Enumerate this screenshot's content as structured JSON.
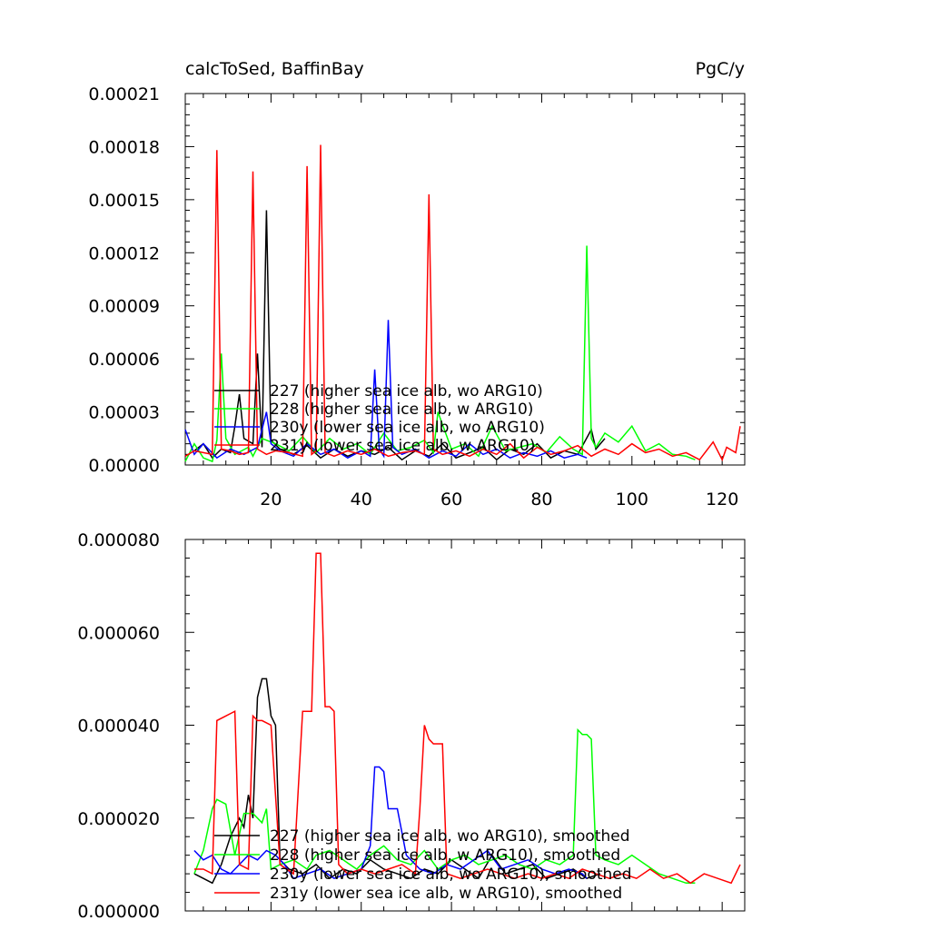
{
  "header": {
    "left_title": "calcToSed, BaffinBay",
    "right_title": "PgC/y"
  },
  "chart_data": [
    {
      "type": "line",
      "title": "calcToSed, BaffinBay",
      "units": "PgC/y",
      "xlim": [
        1,
        125
      ],
      "ylim": [
        0,
        0.00021
      ],
      "x_ticks": [
        20,
        40,
        60,
        80,
        100,
        120
      ],
      "x_tick_labels": [
        "20",
        "40",
        "60",
        "80",
        "100",
        "120"
      ],
      "y_ticks": [
        0,
        3e-05,
        6e-05,
        9e-05,
        0.00012,
        0.00015,
        0.00018,
        0.00021
      ],
      "y_tick_labels": [
        "0.00000",
        "0.00003",
        "0.00006",
        "0.00009",
        "0.00012",
        "0.00015",
        "0.00018",
        "0.00021"
      ],
      "legend_position": "bottom-left",
      "series": [
        {
          "name": "227 (higher sea ice alb, wo ARG10)",
          "color": "#000000",
          "x": [
            3,
            5,
            7,
            9,
            11,
            12,
            13,
            14,
            16,
            17,
            18,
            19,
            20,
            22,
            25,
            28,
            31,
            34,
            37,
            40,
            43,
            46,
            49,
            52,
            55,
            58,
            61,
            64,
            67,
            70,
            73,
            76,
            79,
            82,
            85,
            88,
            91,
            92,
            94
          ],
          "y": [
            8e-06,
            1.2e-05,
            4e-06,
            9e-06,
            7e-06,
            2.2e-05,
            4e-05,
            1.5e-05,
            1.2e-05,
            6.3e-05,
            1e-05,
            0.000144,
            1.4e-05,
            9e-06,
            6e-06,
            1.1e-05,
            4e-06,
            9e-06,
            5e-06,
            8e-06,
            6e-06,
            1e-05,
            3e-06,
            8e-06,
            5e-06,
            1.2e-05,
            4e-06,
            7e-06,
            1e-05,
            3e-06,
            9e-06,
            6e-06,
            1.2e-05,
            4e-06,
            8e-06,
            6e-06,
            2e-05,
            9e-06,
            1.5e-05
          ]
        },
        {
          "name": "228 (higher sea ice alb, w ARG10)",
          "color": "#00ff00",
          "x": [
            1,
            3,
            5,
            7,
            8,
            9,
            10,
            12,
            15,
            16,
            18,
            21,
            24,
            27,
            30,
            33,
            36,
            39,
            42,
            45,
            48,
            51,
            54,
            56,
            57,
            60,
            63,
            66,
            69,
            72,
            75,
            78,
            81,
            84,
            87,
            89,
            90,
            91,
            92,
            94,
            97,
            100,
            103,
            106,
            109,
            112,
            114
          ],
          "y": [
            2e-06,
            1.2e-05,
            4e-06,
            2e-06,
            1.4e-05,
            6.3e-05,
            1.5e-05,
            6e-06,
            1e-05,
            5e-06,
            1.5e-05,
            1.2e-05,
            8e-06,
            1.6e-05,
            7e-06,
            1.5e-05,
            9e-06,
            1.2e-05,
            6e-06,
            1.8e-05,
            8e-06,
            1e-05,
            1.4e-05,
            7e-06,
            3e-05,
            9e-06,
            1.2e-05,
            5e-06,
            2.2e-05,
            8e-06,
            1e-05,
            1.2e-05,
            7e-06,
            1.6e-05,
            9e-06,
            6e-06,
            0.000124,
            1.5e-05,
            1e-05,
            1.8e-05,
            1.3e-05,
            2.2e-05,
            8e-06,
            1.2e-05,
            6e-06,
            5e-06,
            3e-06
          ]
        },
        {
          "name": "230y (lower sea ice alb, wo ARG10)",
          "color": "#0000ff",
          "x": [
            1,
            3,
            5,
            8,
            11,
            14,
            17,
            19,
            20,
            22,
            25,
            28,
            31,
            34,
            37,
            40,
            42,
            43,
            44,
            45,
            46,
            47,
            49,
            52,
            55,
            58,
            61,
            64,
            67,
            70,
            73,
            76,
            79,
            82,
            85,
            88,
            89,
            90
          ],
          "y": [
            2e-05,
            6e-06,
            1.2e-05,
            4e-06,
            9e-06,
            6e-06,
            1e-05,
            3e-05,
            1.2e-05,
            8e-06,
            5e-06,
            1.2e-05,
            6e-06,
            9e-06,
            4e-06,
            8e-06,
            5e-06,
            5.4e-05,
            9e-06,
            5e-06,
            8.2e-05,
            1e-05,
            6e-06,
            9e-06,
            4e-06,
            8e-06,
            5e-06,
            1.2e-05,
            6e-06,
            9e-06,
            4e-06,
            7e-06,
            5e-06,
            8e-06,
            4e-06,
            6e-06,
            5e-06,
            4e-06
          ]
        },
        {
          "name": "231y (lower sea ice alb, w ARG10)",
          "color": "#ff0000",
          "x": [
            1,
            3,
            5,
            7,
            8,
            9,
            11,
            13,
            15,
            16,
            17,
            19,
            21,
            24,
            27,
            28,
            29,
            30,
            31,
            32,
            34,
            37,
            40,
            43,
            46,
            49,
            52,
            54,
            55,
            56,
            58,
            61,
            64,
            67,
            70,
            73,
            76,
            79,
            82,
            85,
            88,
            91,
            94,
            97,
            100,
            103,
            106,
            109,
            112,
            115,
            118,
            120,
            121,
            123,
            124
          ],
          "y": [
            5e-06,
            8e-06,
            7e-06,
            6e-06,
            0.000178,
            9e-06,
            8e-06,
            6e-06,
            7e-06,
            0.000166,
            9e-06,
            6e-06,
            8e-06,
            7e-06,
            5e-06,
            0.000169,
            6e-06,
            8e-06,
            0.000181,
            7e-06,
            5e-06,
            8e-06,
            6e-06,
            9e-06,
            5e-06,
            7e-06,
            8e-06,
            6e-06,
            0.000153,
            9e-06,
            6e-06,
            8e-06,
            5e-06,
            9e-06,
            6e-06,
            1.2e-05,
            4e-06,
            1e-05,
            6e-06,
            8e-06,
            1.1e-05,
            5e-06,
            9e-06,
            6e-06,
            1.2e-05,
            7e-06,
            9e-06,
            5e-06,
            7e-06,
            3e-06,
            1.3e-05,
            3e-06,
            1e-05,
            7e-06,
            2.2e-05
          ]
        }
      ]
    },
    {
      "type": "line",
      "xlim": [
        1,
        125
      ],
      "ylim": [
        0,
        8e-05
      ],
      "y_ticks": [
        0,
        2e-05,
        4e-05,
        6e-05,
        8e-05
      ],
      "y_tick_labels": [
        "0.000000",
        "0.000020",
        "0.000040",
        "0.000060",
        "0.000080"
      ],
      "legend_position": "bottom-left",
      "series": [
        {
          "name": "227 (higher sea ice alb, wo ARG10), smoothed",
          "color": "#000000",
          "x": [
            3,
            5,
            7,
            9,
            11,
            13,
            14,
            15,
            16,
            17,
            18,
            19,
            20,
            21,
            22,
            24,
            27,
            30,
            33,
            36,
            39,
            42,
            45,
            48,
            51,
            54,
            57,
            60,
            63,
            66,
            69,
            72,
            75,
            78,
            81,
            84,
            87,
            90,
            93
          ],
          "y": [
            8e-06,
            7e-06,
            6e-06,
            1e-05,
            1.6e-05,
            2e-05,
            1.8e-05,
            2.5e-05,
            2e-05,
            4.6e-05,
            5e-05,
            5e-05,
            4.2e-05,
            4e-05,
            1.1e-05,
            9e-06,
            8e-06,
            1e-05,
            7e-06,
            9e-06,
            8e-06,
            1.1e-05,
            9e-06,
            8e-06,
            7e-06,
            9e-06,
            8e-06,
            1.1e-05,
            9e-06,
            7e-06,
            1.2e-05,
            8e-06,
            9e-06,
            1e-05,
            7e-06,
            8e-06,
            9e-06,
            7e-06,
            8e-06
          ]
        },
        {
          "name": "228 (higher sea ice alb, w ARG10), smoothed",
          "color": "#00ff00",
          "x": [
            3,
            5,
            7,
            8,
            10,
            12,
            14,
            16,
            18,
            19,
            20,
            22,
            25,
            28,
            30,
            33,
            36,
            39,
            42,
            45,
            48,
            51,
            54,
            57,
            60,
            63,
            66,
            69,
            72,
            75,
            78,
            81,
            84,
            87,
            88,
            89,
            90,
            91,
            92,
            94,
            97,
            100,
            103,
            106,
            109,
            112,
            114
          ],
          "y": [
            8e-06,
            1.3e-05,
            2.2e-05,
            2.4e-05,
            2.3e-05,
            1.2e-05,
            2.1e-05,
            2.1e-05,
            1.9e-05,
            2.2e-05,
            9e-06,
            1e-05,
            1.1e-05,
            9e-06,
            1.2e-05,
            1.3e-05,
            1.1e-05,
            9e-06,
            1.2e-05,
            1.4e-05,
            1.1e-05,
            1e-05,
            1.3e-05,
            9e-06,
            1.1e-05,
            1.2e-05,
            1e-05,
            1.1e-05,
            1.2e-05,
            1e-05,
            9e-06,
            1.1e-05,
            1e-05,
            1.2e-05,
            3.9e-05,
            3.8e-05,
            3.8e-05,
            3.7e-05,
            1.2e-05,
            1.1e-05,
            1e-05,
            1.2e-05,
            1e-05,
            8e-06,
            7e-06,
            6e-06,
            6e-06
          ]
        },
        {
          "name": "230y (lower sea ice alb, wo ARG10), smoothed",
          "color": "#0000ff",
          "x": [
            3,
            5,
            7,
            9,
            11,
            13,
            15,
            17,
            19,
            21,
            23,
            25,
            28,
            31,
            34,
            37,
            40,
            42,
            43,
            44,
            45,
            46,
            47,
            48,
            50,
            53,
            56,
            59,
            62,
            65,
            68,
            71,
            74,
            77,
            80,
            83,
            86,
            89,
            90
          ],
          "y": [
            1.3e-05,
            1.1e-05,
            1.2e-05,
            9e-06,
            8e-06,
            1e-05,
            1.2e-05,
            1.1e-05,
            1.3e-05,
            1.2e-05,
            1e-05,
            7e-06,
            8e-06,
            9e-06,
            7e-06,
            8e-06,
            9e-06,
            1.4e-05,
            3.1e-05,
            3.1e-05,
            3e-05,
            2.2e-05,
            2.2e-05,
            2.2e-05,
            1.2e-05,
            9e-06,
            8e-06,
            1e-05,
            9e-06,
            1.1e-05,
            1.3e-05,
            9e-06,
            1e-05,
            1.1e-05,
            9e-06,
            8e-06,
            9e-06,
            8e-06,
            7e-06
          ]
        },
        {
          "name": "231y (lower sea ice alb, w ARG10), smoothed",
          "color": "#ff0000",
          "x": [
            3,
            5,
            7,
            8,
            10,
            12,
            13,
            15,
            16,
            17,
            18,
            20,
            22,
            25,
            27,
            28,
            29,
            30,
            31,
            32,
            33,
            34,
            35,
            37,
            40,
            43,
            46,
            49,
            52,
            53,
            54,
            55,
            56,
            57,
            58,
            59,
            62,
            65,
            68,
            71,
            74,
            77,
            80,
            83,
            86,
            89,
            92,
            95,
            98,
            101,
            104,
            107,
            110,
            113,
            116,
            119,
            122,
            124
          ],
          "y": [
            9e-06,
            9e-06,
            8e-06,
            4.1e-05,
            4.2e-05,
            4.3e-05,
            1e-05,
            9e-06,
            4.2e-05,
            4.1e-05,
            4.1e-05,
            4e-05,
            1e-05,
            8e-06,
            4.3e-05,
            4.3e-05,
            4.3e-05,
            7.7e-05,
            7.7e-05,
            4.4e-05,
            4.4e-05,
            4.3e-05,
            1e-05,
            8e-06,
            9e-06,
            8e-06,
            9e-06,
            1e-05,
            8e-06,
            2.2e-05,
            4e-05,
            3.7e-05,
            3.6e-05,
            3.6e-05,
            3.6e-05,
            8e-06,
            7e-06,
            8e-06,
            9e-06,
            8e-06,
            7e-06,
            8e-06,
            7e-06,
            8e-06,
            7e-06,
            9e-06,
            8e-06,
            7e-06,
            8e-06,
            7e-06,
            9e-06,
            7e-06,
            8e-06,
            6e-06,
            8e-06,
            7e-06,
            6e-06,
            1e-05
          ]
        }
      ]
    }
  ]
}
